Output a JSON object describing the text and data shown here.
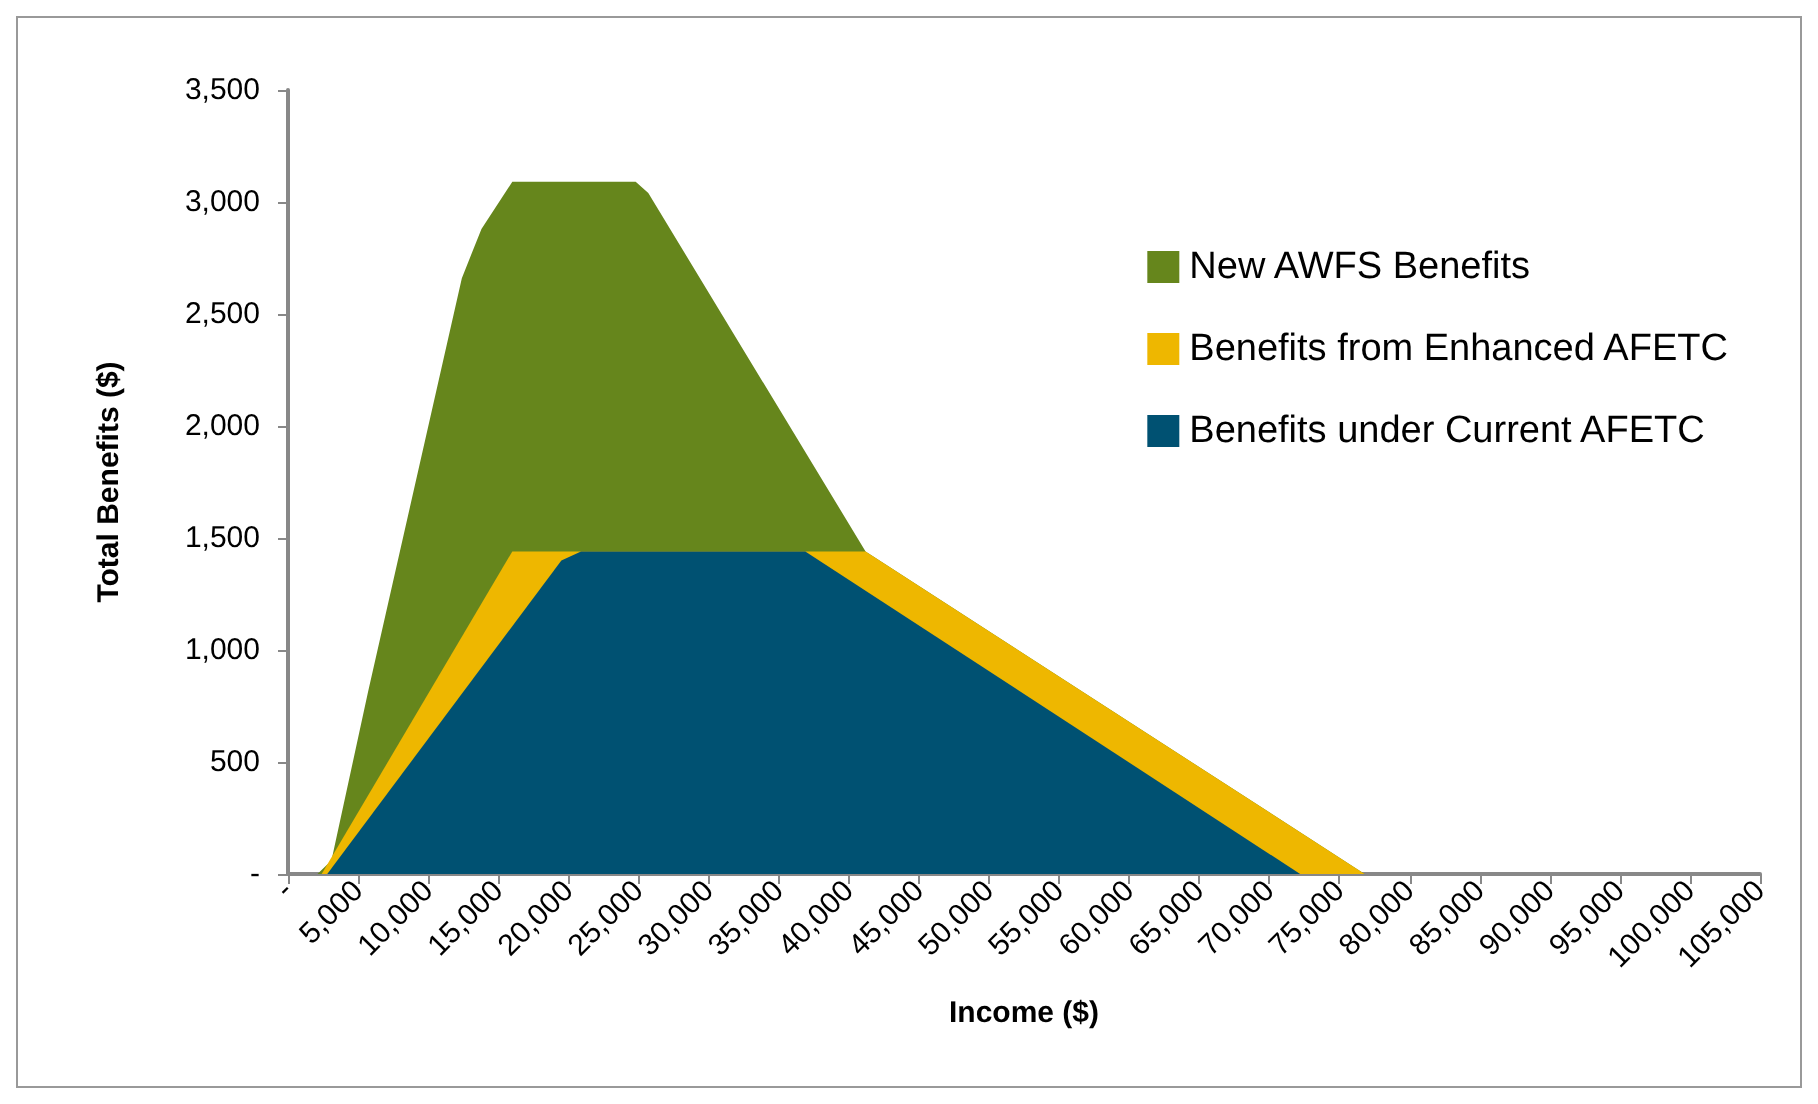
{
  "chart_data": {
    "type": "area",
    "xlabel": "Income ($)",
    "ylabel": "Total Benefits ($)",
    "xlim": [
      0,
      105000
    ],
    "xticks": [
      {
        "value": 0,
        "label": "-"
      },
      {
        "value": 5000,
        "label": "5,000"
      },
      {
        "value": 10000,
        "label": "10,000"
      },
      {
        "value": 15000,
        "label": "15,000"
      },
      {
        "value": 20000,
        "label": "20,000"
      },
      {
        "value": 25000,
        "label": "25,000"
      },
      {
        "value": 30000,
        "label": "30,000"
      },
      {
        "value": 35000,
        "label": "35,000"
      },
      {
        "value": 40000,
        "label": "40,000"
      },
      {
        "value": 45000,
        "label": "45,000"
      },
      {
        "value": 50000,
        "label": "50,000"
      },
      {
        "value": 55000,
        "label": "55,000"
      },
      {
        "value": 60000,
        "label": "60,000"
      },
      {
        "value": 65000,
        "label": "65,000"
      },
      {
        "value": 70000,
        "label": "70,000"
      },
      {
        "value": 75000,
        "label": "75,000"
      },
      {
        "value": 80000,
        "label": "80,000"
      },
      {
        "value": 85000,
        "label": "85,000"
      },
      {
        "value": 90000,
        "label": "90,000"
      },
      {
        "value": 95000,
        "label": "95,000"
      },
      {
        "value": 100000,
        "label": "100,000"
      },
      {
        "value": 105000,
        "label": "105,000"
      }
    ],
    "ylim": [
      0,
      3500
    ],
    "yticks": [
      {
        "value": 0,
        "label": "-"
      },
      500,
      {
        "value": 1000,
        "label": "1,000"
      },
      {
        "value": 1500,
        "label": "1,500"
      },
      {
        "value": 2000,
        "label": "2,000"
      },
      {
        "value": 2500,
        "label": "2,500"
      },
      {
        "value": 3000,
        "label": "3,000"
      },
      {
        "value": 3500,
        "label": "3,500"
      }
    ],
    "grid": false,
    "legend": "top right",
    "series": [
      {
        "name": "New AWFS Benefits",
        "color": "#66861c",
        "x": [
          2100,
          3100,
          5700,
          12400,
          13800,
          16000,
          24800,
          25700,
          41200,
          76800
        ],
        "values": [
          0,
          60,
          810,
          2660,
          2880,
          3090,
          3090,
          3040,
          1440,
          0
        ]
      },
      {
        "name": "Benefits from Enhanced AFETC",
        "color": "#eeb700",
        "x": [
          2400,
          16000,
          41200,
          76800
        ],
        "values": [
          0,
          1440,
          1440,
          0
        ]
      },
      {
        "name": "Benefits under Current AFETC",
        "color": "#005172",
        "x": [
          2800,
          19500,
          20900,
          36900,
          72200
        ],
        "values": [
          0,
          1400,
          1440,
          1440,
          0
        ]
      }
    ]
  }
}
